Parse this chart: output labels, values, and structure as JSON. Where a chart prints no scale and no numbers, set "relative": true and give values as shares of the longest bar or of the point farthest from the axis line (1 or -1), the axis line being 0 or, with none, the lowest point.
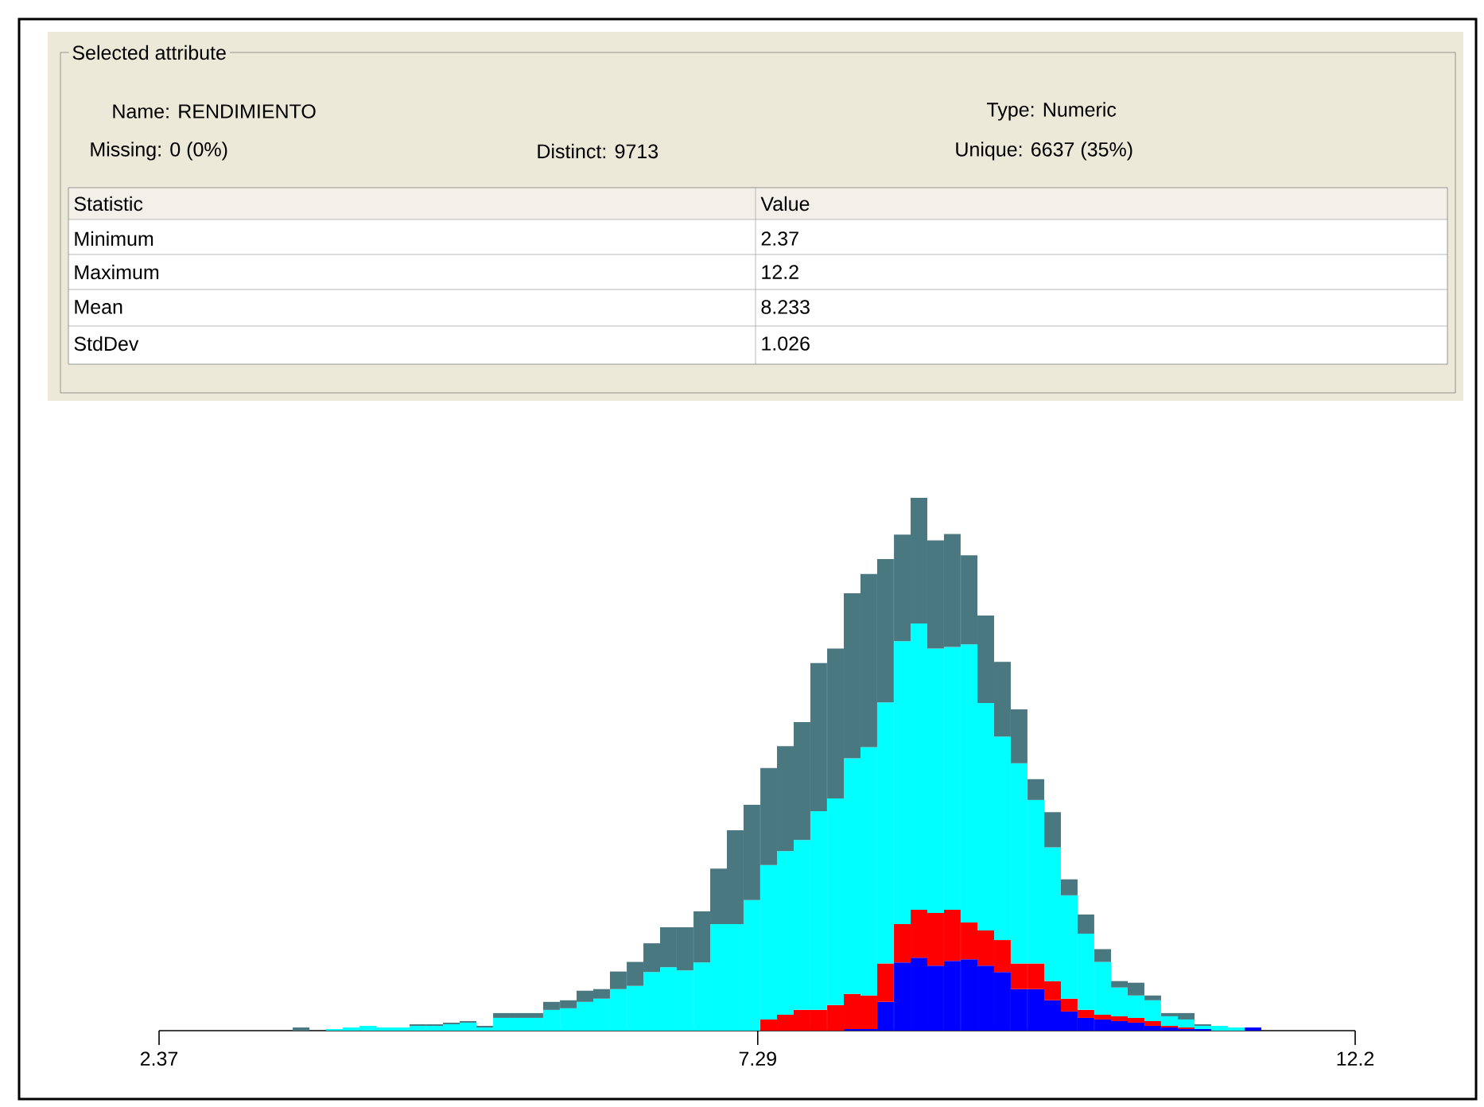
{
  "chart_data": {
    "type": "bar",
    "title": "Selected attribute",
    "annotations": [
      "Name: RENDIMIENTO",
      "Type: Numeric",
      "Missing: 0 (0%)",
      "Distinct: 9713",
      "Unique: 6637 (35%)",
      "Statistic",
      "Value",
      "Minimum",
      "2.37",
      "Maximum",
      "12.2",
      "Mean",
      "8.233",
      "StdDev",
      "1.026"
    ],
    "relative": true,
    "stacked": true,
    "xlim": [
      2.37,
      12.2
    ],
    "xticks": [
      2.37,
      7.29,
      12.2
    ],
    "x": [
      3.537,
      3.674,
      3.811,
      3.948,
      4.086,
      4.223,
      4.36,
      4.497,
      4.635,
      4.772,
      4.909,
      5.046,
      5.184,
      5.321,
      5.458,
      5.595,
      5.733,
      5.87,
      6.007,
      6.144,
      6.282,
      6.419,
      6.556,
      6.693,
      6.831,
      6.968,
      7.105,
      7.242,
      7.38,
      7.517,
      7.654,
      7.791,
      7.929,
      8.066,
      8.203,
      8.34,
      8.478,
      8.615,
      8.752,
      8.889,
      9.027,
      9.164,
      9.301,
      9.438,
      9.576,
      9.713,
      9.85,
      9.987,
      10.125,
      10.262,
      10.399,
      10.536,
      10.674,
      10.811,
      10.948,
      11.085,
      11.223,
      11.36
    ],
    "series": [
      {
        "color": "#0000ff",
        "values": [
          0,
          0,
          0,
          0,
          0,
          0,
          0,
          0,
          0,
          0,
          0,
          0,
          0,
          0,
          0,
          0,
          0,
          0,
          0,
          0,
          0,
          0,
          0,
          0,
          0,
          0,
          0,
          0,
          0,
          0,
          0,
          0,
          0,
          0.003,
          0.003,
          0.054,
          0.128,
          0.137,
          0.122,
          0.131,
          0.134,
          0.122,
          0.11,
          0.078,
          0.078,
          0.057,
          0.036,
          0.024,
          0.021,
          0.018,
          0.015,
          0.009,
          0.006,
          0.003,
          0.003,
          0,
          0,
          0.006
        ]
      },
      {
        "color": "#ff0000",
        "values": [
          0,
          0,
          0,
          0,
          0,
          0,
          0,
          0,
          0,
          0,
          0,
          0,
          0,
          0,
          0,
          0,
          0,
          0,
          0,
          0,
          0,
          0,
          0,
          0,
          0,
          0,
          0,
          0,
          0.021,
          0.03,
          0.039,
          0.039,
          0.048,
          0.066,
          0.063,
          0.072,
          0.072,
          0.09,
          0.099,
          0.096,
          0.069,
          0.066,
          0.06,
          0.048,
          0.048,
          0.036,
          0.024,
          0.015,
          0.009,
          0.009,
          0.009,
          0.009,
          0.003,
          0.003,
          0,
          0,
          0,
          0
        ]
      },
      {
        "color": "#00ffff",
        "values": [
          0,
          0,
          0.003,
          0.006,
          0.009,
          0.006,
          0.006,
          0.009,
          0.009,
          0.012,
          0.015,
          0.006,
          0.024,
          0.024,
          0.024,
          0.039,
          0.042,
          0.054,
          0.06,
          0.078,
          0.084,
          0.11,
          0.119,
          0.113,
          0.128,
          0.2,
          0.2,
          0.245,
          0.29,
          0.307,
          0.319,
          0.373,
          0.388,
          0.442,
          0.466,
          0.49,
          0.531,
          0.537,
          0.496,
          0.493,
          0.522,
          0.427,
          0.382,
          0.376,
          0.307,
          0.251,
          0.194,
          0.143,
          0.099,
          0.054,
          0.042,
          0.039,
          0.018,
          0.015,
          0.006,
          0.009,
          0.006,
          0
        ]
      },
      {
        "color": "#4a7880",
        "values": [
          0.006,
          0,
          0,
          0,
          0,
          0,
          0,
          0.003,
          0.003,
          0.003,
          0.003,
          0.003,
          0.009,
          0.009,
          0.009,
          0.015,
          0.015,
          0.021,
          0.018,
          0.033,
          0.045,
          0.054,
          0.075,
          0.081,
          0.096,
          0.104,
          0.176,
          0.179,
          0.182,
          0.197,
          0.221,
          0.278,
          0.281,
          0.31,
          0.325,
          0.269,
          0.2,
          0.236,
          0.203,
          0.212,
          0.167,
          0.164,
          0.14,
          0.101,
          0.039,
          0.066,
          0.03,
          0.036,
          0.024,
          0.012,
          0.024,
          0.009,
          0.006,
          0.012,
          0.003,
          0,
          0,
          0
        ]
      }
    ]
  }
}
